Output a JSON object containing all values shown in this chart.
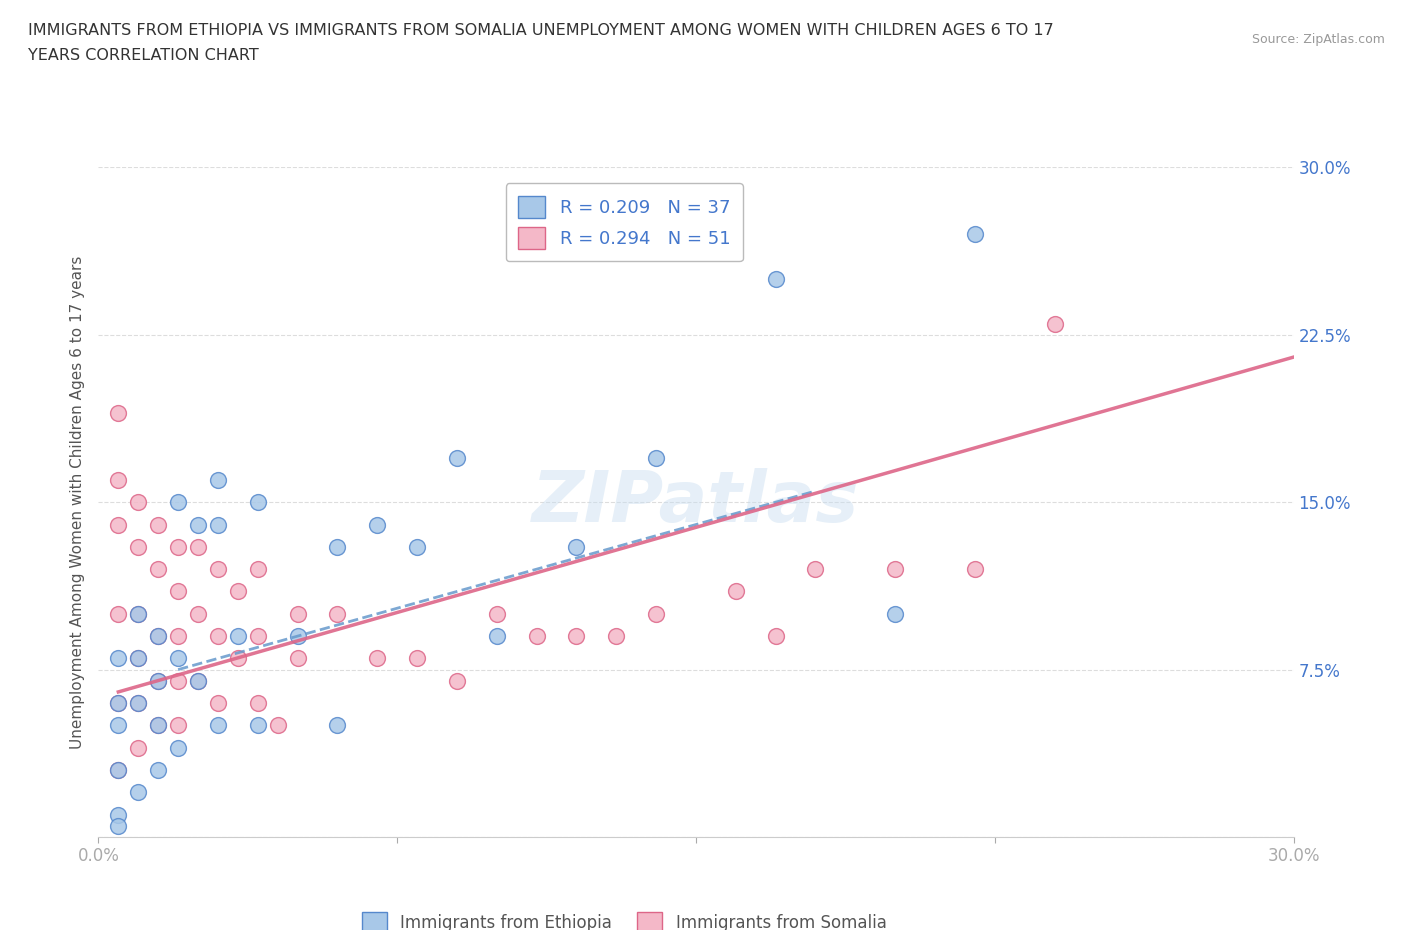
{
  "title_line1": "IMMIGRANTS FROM ETHIOPIA VS IMMIGRANTS FROM SOMALIA UNEMPLOYMENT AMONG WOMEN WITH CHILDREN AGES 6 TO 17",
  "title_line2": "YEARS CORRELATION CHART",
  "source": "Source: ZipAtlas.com",
  "ylabel": "Unemployment Among Women with Children Ages 6 to 17 years",
  "xlim": [
    0.0,
    0.3
  ],
  "ylim": [
    0.0,
    0.3
  ],
  "yticks": [
    0.0,
    0.075,
    0.15,
    0.225,
    0.3
  ],
  "ytick_labels": [
    "",
    "7.5%",
    "15.0%",
    "22.5%",
    "30.0%"
  ],
  "xticks": [
    0.0,
    0.075,
    0.15,
    0.225,
    0.3
  ],
  "xtick_labels": [
    "0.0%",
    "",
    "",
    "",
    "30.0%"
  ],
  "ethiopia_color": "#a8c8e8",
  "ethiopia_edge": "#5588cc",
  "somalia_color": "#f4b8c8",
  "somalia_edge": "#dd6688",
  "ethiopia_R": 0.209,
  "ethiopia_N": 37,
  "somalia_R": 0.294,
  "somalia_N": 51,
  "legend_text_color": "#4477cc",
  "ethiopia_scatter_x": [
    0.005,
    0.005,
    0.005,
    0.005,
    0.005,
    0.005,
    0.01,
    0.01,
    0.01,
    0.01,
    0.015,
    0.015,
    0.015,
    0.015,
    0.02,
    0.02,
    0.02,
    0.025,
    0.025,
    0.03,
    0.03,
    0.03,
    0.035,
    0.04,
    0.04,
    0.05,
    0.06,
    0.06,
    0.07,
    0.08,
    0.09,
    0.1,
    0.12,
    0.14,
    0.17,
    0.2,
    0.22
  ],
  "ethiopia_scatter_y": [
    0.08,
    0.06,
    0.05,
    0.03,
    0.01,
    0.005,
    0.1,
    0.08,
    0.06,
    0.02,
    0.09,
    0.07,
    0.05,
    0.03,
    0.15,
    0.08,
    0.04,
    0.14,
    0.07,
    0.16,
    0.14,
    0.05,
    0.09,
    0.15,
    0.05,
    0.09,
    0.13,
    0.05,
    0.14,
    0.13,
    0.17,
    0.09,
    0.13,
    0.17,
    0.25,
    0.1,
    0.27
  ],
  "somalia_scatter_x": [
    0.005,
    0.005,
    0.005,
    0.005,
    0.005,
    0.005,
    0.01,
    0.01,
    0.01,
    0.01,
    0.01,
    0.01,
    0.015,
    0.015,
    0.015,
    0.015,
    0.015,
    0.02,
    0.02,
    0.02,
    0.02,
    0.02,
    0.025,
    0.025,
    0.025,
    0.03,
    0.03,
    0.03,
    0.035,
    0.035,
    0.04,
    0.04,
    0.04,
    0.045,
    0.05,
    0.05,
    0.06,
    0.07,
    0.08,
    0.09,
    0.1,
    0.11,
    0.12,
    0.13,
    0.14,
    0.16,
    0.17,
    0.18,
    0.2,
    0.22,
    0.24
  ],
  "somalia_scatter_y": [
    0.19,
    0.16,
    0.14,
    0.1,
    0.06,
    0.03,
    0.15,
    0.13,
    0.1,
    0.08,
    0.06,
    0.04,
    0.14,
    0.12,
    0.09,
    0.07,
    0.05,
    0.13,
    0.11,
    0.09,
    0.07,
    0.05,
    0.13,
    0.1,
    0.07,
    0.12,
    0.09,
    0.06,
    0.11,
    0.08,
    0.12,
    0.09,
    0.06,
    0.05,
    0.1,
    0.08,
    0.1,
    0.08,
    0.08,
    0.07,
    0.1,
    0.09,
    0.09,
    0.09,
    0.1,
    0.11,
    0.09,
    0.12,
    0.12,
    0.12,
    0.23
  ],
  "watermark": "ZIPatlas",
  "background_color": "#ffffff",
  "grid_color": "#dddddd",
  "ethiopia_line_color": "#6699cc",
  "somalia_line_color": "#dd6688",
  "ethiopia_line_x": [
    0.02,
    0.18
  ],
  "ethiopia_line_y": [
    0.075,
    0.155
  ],
  "somalia_line_x": [
    0.005,
    0.3
  ],
  "somalia_line_y": [
    0.065,
    0.215
  ]
}
